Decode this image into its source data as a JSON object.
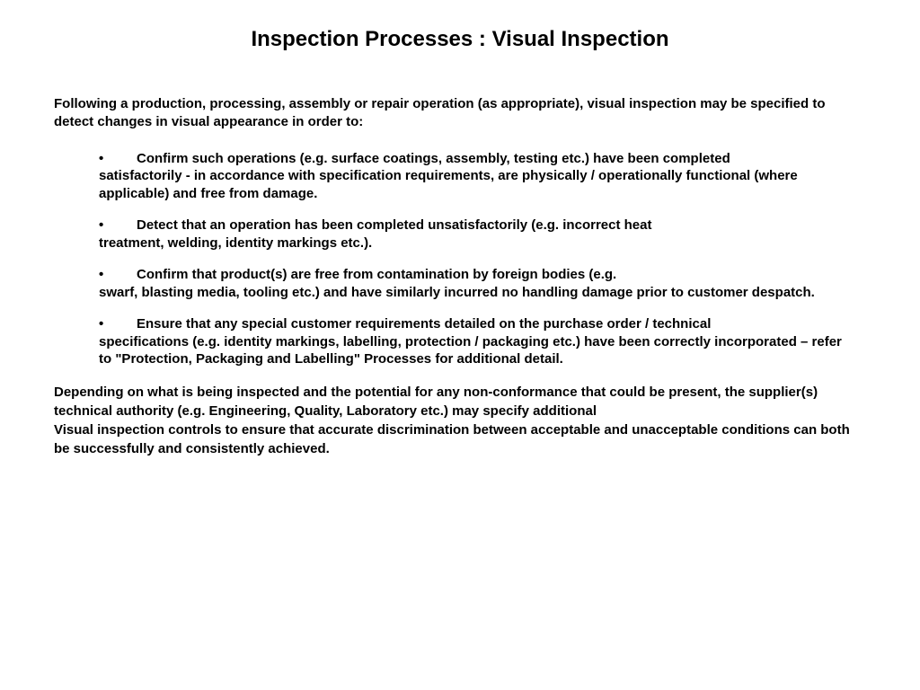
{
  "title": "Inspection Processes : Visual Inspection",
  "intro": "Following a production, processing, assembly or repair operation (as appropriate), visual inspection may be specified to detect changes in visual appearance in order to:",
  "bullets": [
    {
      "lead": "Confirm such operations (e.g. surface coatings, assembly, testing etc.) have been completed",
      "cont": "satisfactorily - in accordance with specification requirements, are physically / operationally functional (where applicable) and free from damage."
    },
    {
      "lead": "Detect that an operation has been completed unsatisfactorily (e.g. incorrect heat",
      "cont": "treatment, welding, identity markings etc.)."
    },
    {
      "lead": "Confirm that product(s) are free from contamination by foreign bodies (e.g.",
      "cont": "swarf, blasting media, tooling etc.) and have similarly incurred no handling damage prior to customer despatch."
    },
    {
      "lead": "Ensure that any special customer requirements detailed on the purchase order / technical",
      "cont": "specifications (e.g. identity markings, labelling, protection / packaging etc.) have been correctly incorporated – refer to \"Protection, Packaging and Labelling\" Processes for additional detail."
    }
  ],
  "closing": "Depending on what is being inspected and the potential for any non-conformance that could be present, the supplier(s) technical authority (e.g. Engineering, Quality, Laboratory etc.) may specify additional\nVisual inspection controls to ensure that accurate discrimination between acceptable and unacceptable conditions can both be successfully and consistently achieved."
}
